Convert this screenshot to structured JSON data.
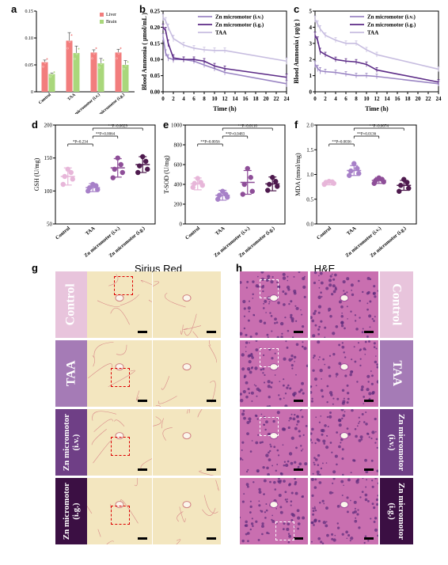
{
  "panel_labels": {
    "a": "a",
    "b": "b",
    "c": "c",
    "d": "d",
    "e": "e",
    "f": "f",
    "g": "g",
    "h": "h"
  },
  "chart_data": [
    {
      "id": "a",
      "type": "bar",
      "categories": [
        "Control",
        "TAA",
        "Zn micromotor (i.v.)",
        "Zn micromotor (i.g.)"
      ],
      "series": [
        {
          "name": "Liver",
          "color": "#f27d7d",
          "values": [
            0.055,
            0.095,
            0.073,
            0.073
          ],
          "err": [
            0.004,
            0.015,
            0.005,
            0.006
          ]
        },
        {
          "name": "Brain",
          "color": "#a9d77b",
          "values": [
            0.033,
            0.072,
            0.053,
            0.05
          ],
          "err": [
            0.002,
            0.013,
            0.009,
            0.008
          ]
        }
      ],
      "yticks": [
        "0",
        "0.05",
        "0.10",
        "0.15"
      ],
      "ylim": [
        0,
        0.15
      ]
    },
    {
      "id": "b",
      "type": "line",
      "ylabel": "Blood Ammonia ( μmol/mL )",
      "xlabel": "Time (h)",
      "xticks": [
        "0",
        "2",
        "4",
        "6",
        "8",
        "10",
        "12",
        "14",
        "16",
        "18",
        "20",
        "22",
        "24"
      ],
      "yticks": [
        "0.00",
        "0.05",
        "0.10",
        "0.15",
        "0.20",
        "0.25"
      ],
      "xlim": [
        0,
        24
      ],
      "ylim": [
        0,
        0.25
      ],
      "x": [
        0,
        0.5,
        1,
        2,
        4,
        6,
        8,
        10,
        12,
        24
      ],
      "series": [
        {
          "name": "Zn micromotor (i.v.)",
          "color": "#9b86c4",
          "values": [
            0.17,
            0.12,
            0.105,
            0.1,
            0.1,
            0.095,
            0.083,
            0.072,
            0.06,
            0.025
          ]
        },
        {
          "name": "Zn micromotor (i.g.)",
          "color": "#5b2a86",
          "values": [
            0.2,
            0.19,
            0.15,
            0.105,
            0.1,
            0.1,
            0.095,
            0.08,
            0.072,
            0.045
          ]
        },
        {
          "name": "TAA",
          "color": "#c7bde0",
          "values": [
            0.23,
            0.22,
            0.2,
            0.165,
            0.145,
            0.135,
            0.13,
            0.128,
            0.128,
            0.095
          ]
        }
      ],
      "err": [
        0.01,
        0.01,
        0.01,
        0.01,
        0.008,
        0.008,
        0.008,
        0.008,
        0.008,
        0.01
      ]
    },
    {
      "id": "c",
      "type": "line",
      "ylabel": "Blood Ammonia ( μg/g )",
      "xlabel": "Time (h)",
      "xticks": [
        "0",
        "2",
        "4",
        "6",
        "8",
        "10",
        "12",
        "14",
        "16",
        "18",
        "20",
        "22",
        "24"
      ],
      "yticks": [
        "0",
        "1",
        "2",
        "3",
        "4",
        "5"
      ],
      "xlim": [
        0,
        24
      ],
      "ylim": [
        0,
        5
      ],
      "x": [
        0,
        0.5,
        1,
        2,
        4,
        6,
        8,
        10,
        12,
        24
      ],
      "series": [
        {
          "name": "Zn micromotor (i.v.)",
          "color": "#9b86c4",
          "values": [
            1.7,
            1.45,
            1.3,
            1.25,
            1.2,
            1.1,
            1.0,
            1.0,
            0.95,
            0.5
          ]
        },
        {
          "name": "Zn micromotor (i.g.)",
          "color": "#5b2a86",
          "values": [
            3.5,
            3.2,
            2.5,
            2.3,
            2.0,
            1.9,
            1.85,
            1.7,
            1.35,
            0.6
          ]
        },
        {
          "name": "TAA",
          "color": "#c7bde0",
          "values": [
            4.5,
            4.2,
            3.9,
            3.5,
            3.2,
            3.0,
            3.0,
            2.6,
            2.3,
            1.4
          ]
        }
      ],
      "err": [
        0.2,
        0.2,
        0.2,
        0.15,
        0.15,
        0.15,
        0.15,
        0.15,
        0.15,
        0.15
      ]
    },
    {
      "id": "d",
      "type": "scatter",
      "ylabel": "GSH (U/mg)",
      "categories": [
        "Control",
        "TAA",
        "Zn micromotor (i.v.)",
        "Zn micromotor (i.g.)"
      ],
      "colors": [
        "#e7b6d9",
        "#a780c8",
        "#8e4e98",
        "#4e1a4e"
      ],
      "means": [
        122,
        105,
        135,
        140
      ],
      "sds": [
        13,
        6,
        14,
        12
      ],
      "points": [
        [
          110,
          118,
          122,
          128,
          133
        ],
        [
          100,
          102,
          105,
          108,
          110
        ],
        [
          120,
          128,
          133,
          140,
          150
        ],
        [
          128,
          133,
          138,
          145,
          152
        ]
      ],
      "yticks": [
        "50",
        "100",
        "150",
        "200"
      ],
      "ylim": [
        50,
        200
      ],
      "sig": [
        {
          "label": "*P=0.234",
          "a": 0,
          "b": 1,
          "level": 1
        },
        {
          "label": "**P=0.0064",
          "a": 1,
          "b": 2,
          "level": 2
        },
        {
          "label": "**P=0.0029",
          "a": 1,
          "b": 3,
          "level": 3
        }
      ]
    },
    {
      "id": "e",
      "type": "scatter",
      "ylabel": "T-SOD (U/mg)",
      "categories": [
        "Control",
        "TAA",
        "Zn micromotor (i.v.)",
        "Zn micromotor (i.g.)"
      ],
      "colors": [
        "#e7b6d9",
        "#a780c8",
        "#8e4e98",
        "#4e1a4e"
      ],
      "means": [
        405,
        290,
        420,
        405
      ],
      "sds": [
        60,
        50,
        120,
        70
      ],
      "points": [
        [
          370,
          390,
          410,
          420,
          460
        ],
        [
          250,
          270,
          290,
          300,
          330
        ],
        [
          300,
          330,
          400,
          470,
          560
        ],
        [
          340,
          380,
          400,
          430,
          470
        ]
      ],
      "yticks": [
        "0",
        "200",
        "400",
        "600",
        "800",
        "1000"
      ],
      "ylim": [
        0,
        1000
      ],
      "sig": [
        {
          "label": "**P=0.0056",
          "a": 0,
          "b": 1,
          "level": 1
        },
        {
          "label": "**P=0.0483",
          "a": 1,
          "b": 2,
          "level": 2
        },
        {
          "label": "**P=0.0110",
          "a": 1,
          "b": 3,
          "level": 3
        }
      ]
    },
    {
      "id": "f",
      "type": "scatter",
      "ylabel": "MDA (nmol/mg)",
      "categories": [
        "Control",
        "TAA",
        "Zn micromotor (i.v.)",
        "Zn micromotor (i.g.)"
      ],
      "colors": [
        "#e7b6d9",
        "#a780c8",
        "#8e4e98",
        "#4e1a4e"
      ],
      "means": [
        0.83,
        1.08,
        0.88,
        0.78
      ],
      "sds": [
        0.04,
        0.1,
        0.06,
        0.1
      ],
      "points": [
        [
          0.8,
          0.82,
          0.84,
          0.85,
          0.86
        ],
        [
          0.98,
          1.02,
          1.07,
          1.12,
          1.22
        ],
        [
          0.82,
          0.85,
          0.88,
          0.9,
          0.93
        ],
        [
          0.66,
          0.72,
          0.78,
          0.84,
          0.9
        ]
      ],
      "yticks": [
        "0.0",
        "0.5",
        "1.0",
        "1.5",
        "2.0"
      ],
      "ylim": [
        0,
        2
      ],
      "sig": [
        {
          "label": "**P=0.0036",
          "a": 0,
          "b": 1,
          "level": 1
        },
        {
          "label": "**P=0.0136",
          "a": 1,
          "b": 2,
          "level": 2
        },
        {
          "label": "**P=0.0074",
          "a": 1,
          "b": 3,
          "level": 3
        }
      ]
    }
  ],
  "histology": {
    "sirius_title": "Sirius Red",
    "he_title": "H&E",
    "rows": [
      {
        "left": "Control",
        "right": "Control",
        "left_bg": "#e8c4dc",
        "right_bg": "#e8c4dc"
      },
      {
        "left": "TAA",
        "right": "TAA",
        "left_bg": "#a57bb6",
        "right_bg": "#a57bb6"
      },
      {
        "left": [
          "Zn micromotor",
          "(i.v.)"
        ],
        "right": [
          "Zn micromotor",
          "(i.v.)"
        ],
        "left_bg": "#6f3f86",
        "right_bg": "#6f3f86"
      },
      {
        "left": [
          "Zn micromotor",
          "(i.g.)"
        ],
        "right": [
          "Zn micromotor",
          "(i.g.)"
        ],
        "left_bg": "#3b0f43",
        "right_bg": "#3b0f43"
      }
    ]
  }
}
